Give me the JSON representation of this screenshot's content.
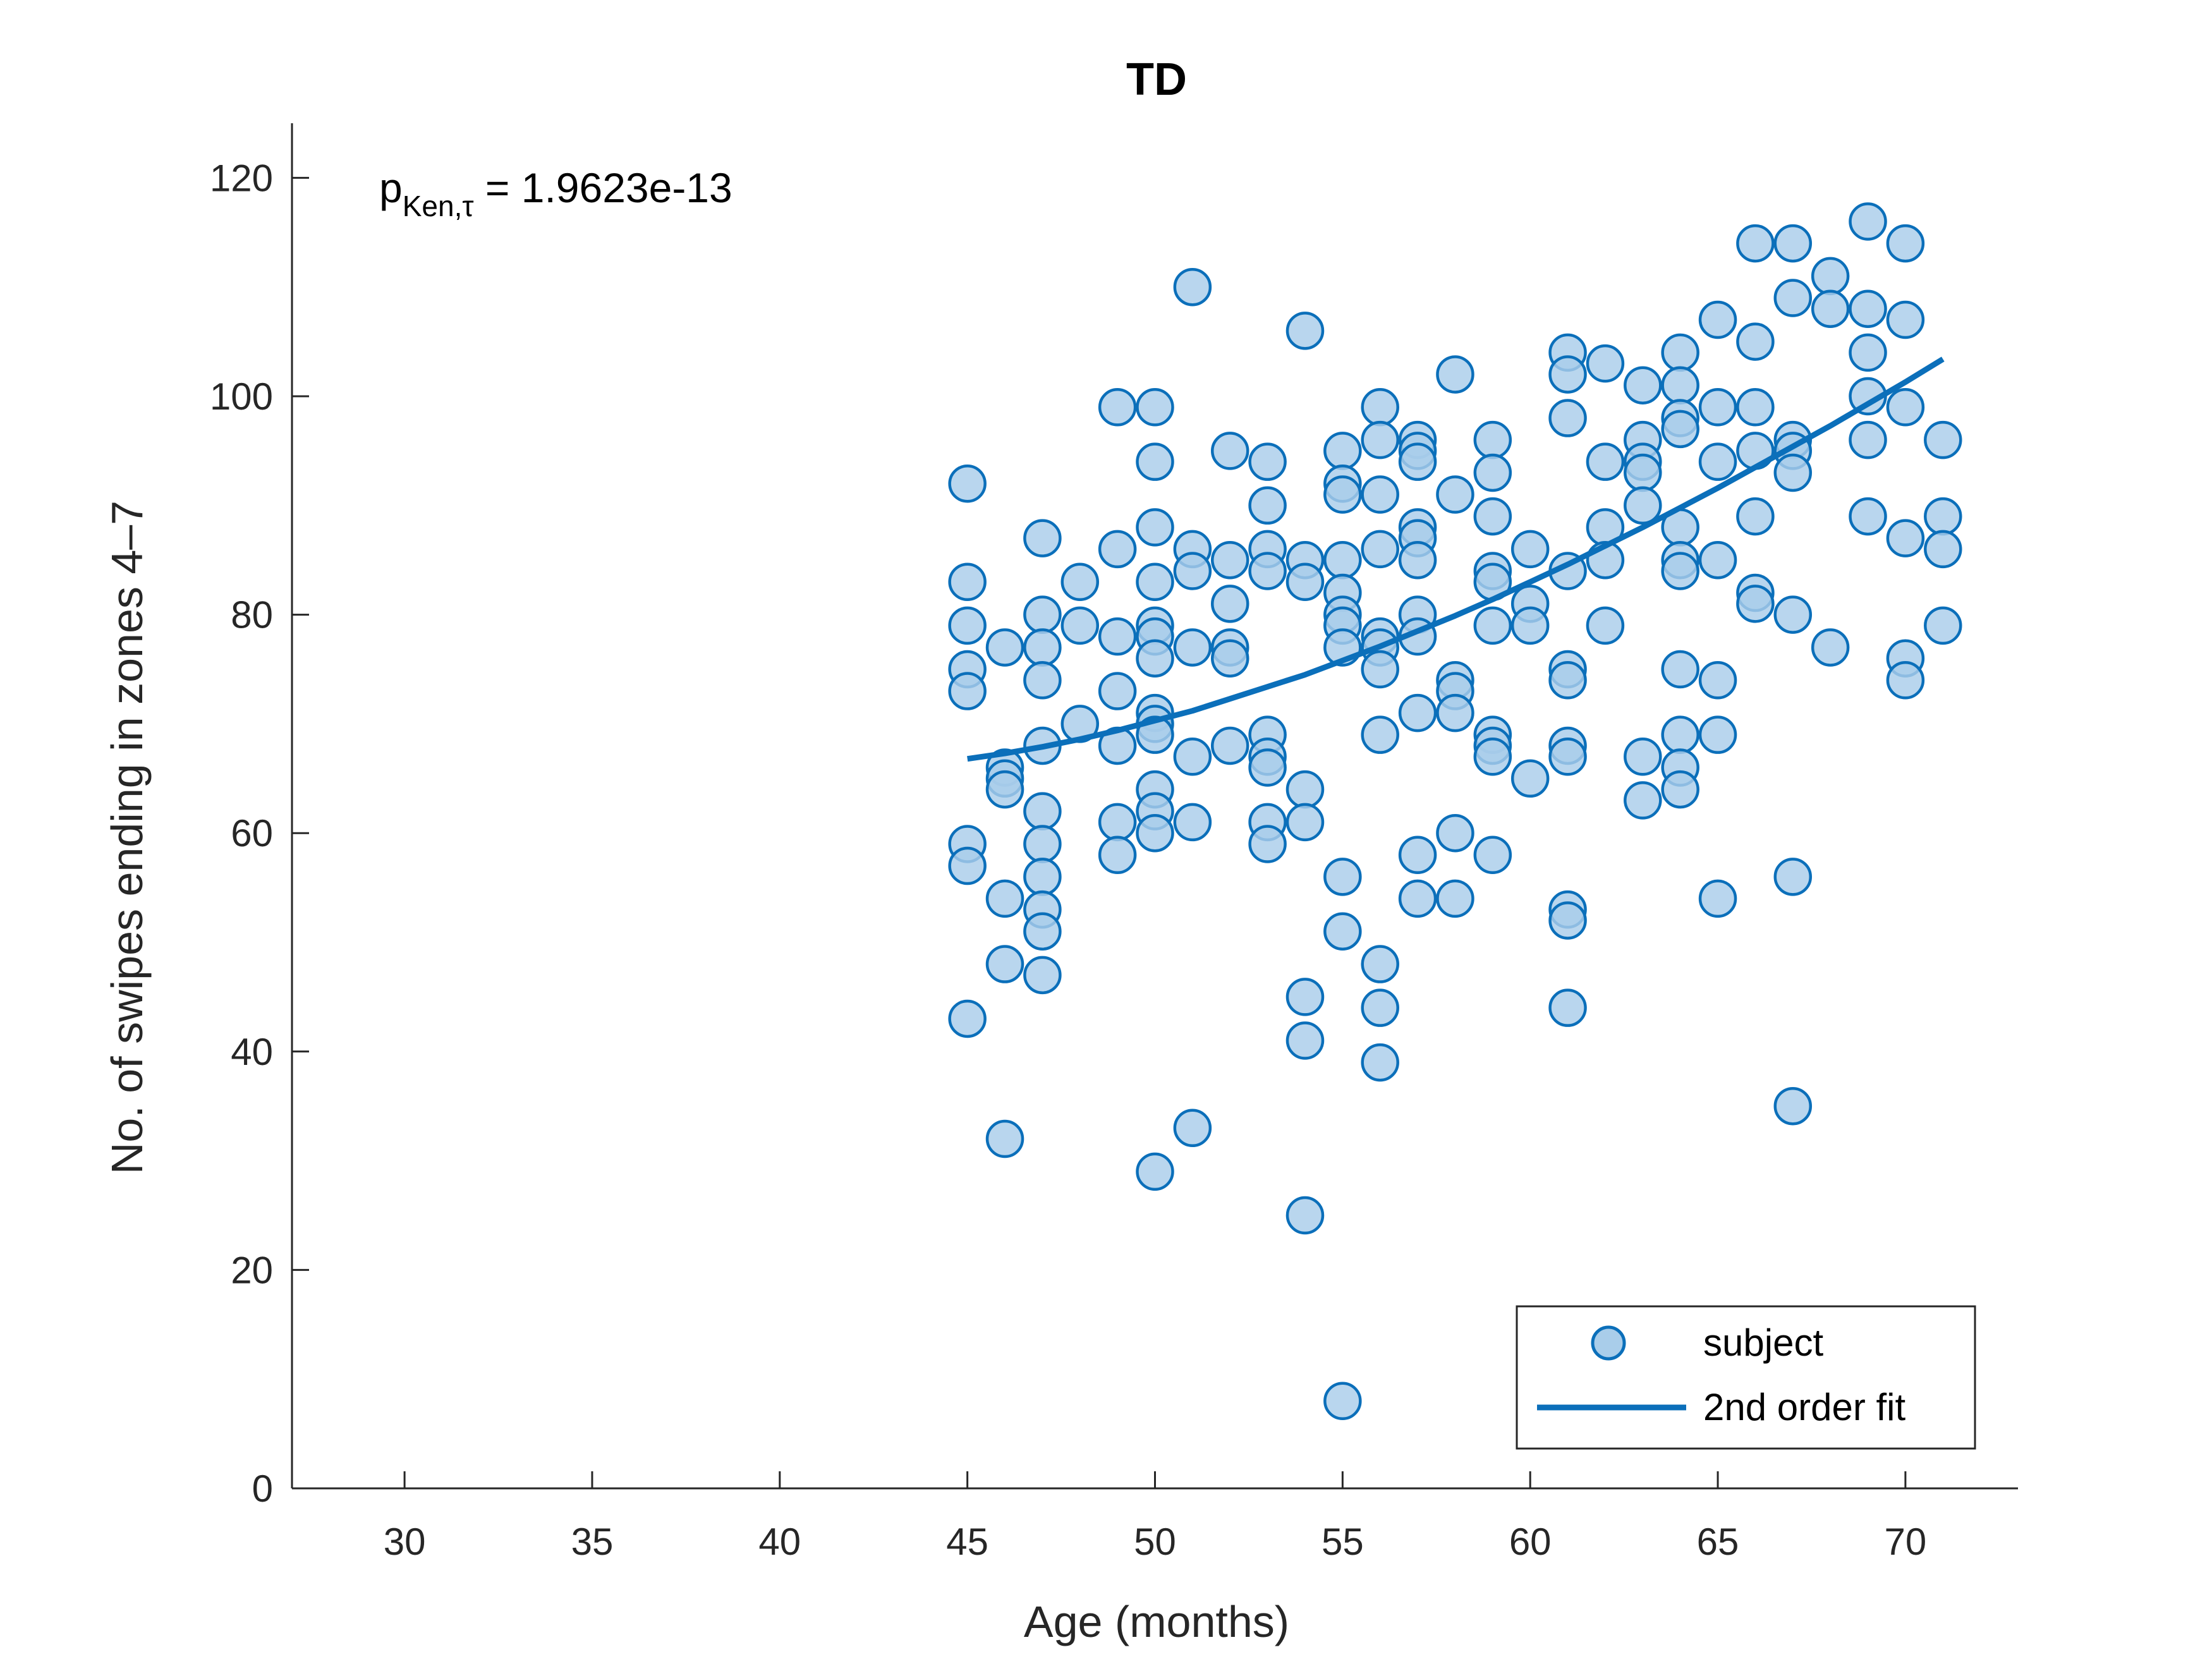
{
  "chart_data": {
    "type": "scatter",
    "title": "TD",
    "xlabel": "Age (months)",
    "ylabel": "No. of swipes ending in zones 4–7",
    "xlim": [
      27,
      73
    ],
    "ylim": [
      0,
      125
    ],
    "xticks": [
      30,
      35,
      40,
      45,
      50,
      55,
      60,
      65,
      70
    ],
    "yticks": [
      0,
      20,
      40,
      60,
      80,
      100,
      120
    ],
    "annotation": {
      "prefix": "p",
      "subscript": "Ken,τ",
      "value": " = 1.9623e-13"
    },
    "legend": {
      "position": "bottom-right",
      "entries": [
        "subject",
        "2nd order fit"
      ]
    },
    "colors": {
      "marker_fill": "#a9cdea",
      "marker_edge": "#0b6fba",
      "fit_line": "#0b6fba"
    },
    "series": [
      {
        "name": "subject",
        "points": [
          [
            45,
            92
          ],
          [
            45,
            83
          ],
          [
            45,
            79
          ],
          [
            45,
            75
          ],
          [
            45,
            73
          ],
          [
            45,
            59
          ],
          [
            45,
            57
          ],
          [
            45,
            43
          ],
          [
            46,
            77
          ],
          [
            46,
            66
          ],
          [
            46,
            65
          ],
          [
            46,
            64
          ],
          [
            46,
            54
          ],
          [
            46,
            48
          ],
          [
            46,
            32
          ],
          [
            47,
            87
          ],
          [
            47,
            80
          ],
          [
            47,
            77
          ],
          [
            47,
            74
          ],
          [
            47,
            68
          ],
          [
            47,
            62
          ],
          [
            47,
            59
          ],
          [
            47,
            56
          ],
          [
            47,
            53
          ],
          [
            47,
            51
          ],
          [
            47,
            47
          ],
          [
            48,
            83
          ],
          [
            48,
            79
          ],
          [
            48,
            70
          ],
          [
            49,
            99
          ],
          [
            49,
            86
          ],
          [
            49,
            78
          ],
          [
            49,
            73
          ],
          [
            49,
            68
          ],
          [
            49,
            61
          ],
          [
            49,
            58
          ],
          [
            50,
            99
          ],
          [
            50,
            94
          ],
          [
            50,
            88
          ],
          [
            50,
            83
          ],
          [
            50,
            79
          ],
          [
            50,
            78
          ],
          [
            50,
            76
          ],
          [
            50,
            71
          ],
          [
            50,
            70
          ],
          [
            50,
            69
          ],
          [
            50,
            64
          ],
          [
            50,
            62
          ],
          [
            50,
            60
          ],
          [
            50,
            29
          ],
          [
            51,
            110
          ],
          [
            51,
            86
          ],
          [
            51,
            84
          ],
          [
            51,
            77
          ],
          [
            51,
            67
          ],
          [
            51,
            61
          ],
          [
            51,
            33
          ],
          [
            52,
            95
          ],
          [
            52,
            85
          ],
          [
            52,
            81
          ],
          [
            52,
            77
          ],
          [
            52,
            76
          ],
          [
            52,
            68
          ],
          [
            53,
            94
          ],
          [
            53,
            90
          ],
          [
            53,
            86
          ],
          [
            53,
            84
          ],
          [
            53,
            69
          ],
          [
            53,
            67
          ],
          [
            53,
            66
          ],
          [
            53,
            61
          ],
          [
            53,
            59
          ],
          [
            54,
            106
          ],
          [
            54,
            85
          ],
          [
            54,
            83
          ],
          [
            54,
            64
          ],
          [
            54,
            61
          ],
          [
            54,
            45
          ],
          [
            54,
            41
          ],
          [
            54,
            25
          ],
          [
            55,
            95
          ],
          [
            55,
            92
          ],
          [
            55,
            91
          ],
          [
            55,
            85
          ],
          [
            55,
            82
          ],
          [
            55,
            80
          ],
          [
            55,
            79
          ],
          [
            55,
            77
          ],
          [
            55,
            56
          ],
          [
            55,
            51
          ],
          [
            55,
            8
          ],
          [
            56,
            99
          ],
          [
            56,
            96
          ],
          [
            56,
            91
          ],
          [
            56,
            86
          ],
          [
            56,
            78
          ],
          [
            56,
            77
          ],
          [
            56,
            75
          ],
          [
            56,
            69
          ],
          [
            56,
            48
          ],
          [
            56,
            44
          ],
          [
            56,
            39
          ],
          [
            57,
            96
          ],
          [
            57,
            95
          ],
          [
            57,
            94
          ],
          [
            57,
            88
          ],
          [
            57,
            87
          ],
          [
            57,
            85
          ],
          [
            57,
            80
          ],
          [
            57,
            78
          ],
          [
            57,
            71
          ],
          [
            57,
            58
          ],
          [
            57,
            54
          ],
          [
            58,
            102
          ],
          [
            58,
            91
          ],
          [
            58,
            74
          ],
          [
            58,
            73
          ],
          [
            58,
            71
          ],
          [
            58,
            60
          ],
          [
            58,
            54
          ],
          [
            59,
            96
          ],
          [
            59,
            93
          ],
          [
            59,
            89
          ],
          [
            59,
            84
          ],
          [
            59,
            83
          ],
          [
            59,
            79
          ],
          [
            59,
            69
          ],
          [
            59,
            68
          ],
          [
            59,
            67
          ],
          [
            59,
            58
          ],
          [
            60,
            86
          ],
          [
            60,
            81
          ],
          [
            60,
            79
          ],
          [
            60,
            65
          ],
          [
            61,
            104
          ],
          [
            61,
            102
          ],
          [
            61,
            98
          ],
          [
            61,
            84
          ],
          [
            61,
            75
          ],
          [
            61,
            74
          ],
          [
            61,
            68
          ],
          [
            61,
            67
          ],
          [
            61,
            53
          ],
          [
            61,
            52
          ],
          [
            61,
            44
          ],
          [
            62,
            103
          ],
          [
            62,
            94
          ],
          [
            62,
            88
          ],
          [
            62,
            85
          ],
          [
            62,
            79
          ],
          [
            63,
            101
          ],
          [
            63,
            96
          ],
          [
            63,
            94
          ],
          [
            63,
            93
          ],
          [
            63,
            90
          ],
          [
            63,
            67
          ],
          [
            63,
            63
          ],
          [
            64,
            104
          ],
          [
            64,
            101
          ],
          [
            64,
            98
          ],
          [
            64,
            97
          ],
          [
            64,
            88
          ],
          [
            64,
            85
          ],
          [
            64,
            84
          ],
          [
            64,
            75
          ],
          [
            64,
            69
          ],
          [
            64,
            66
          ],
          [
            64,
            64
          ],
          [
            65,
            107
          ],
          [
            65,
            99
          ],
          [
            65,
            94
          ],
          [
            65,
            85
          ],
          [
            65,
            74
          ],
          [
            65,
            69
          ],
          [
            65,
            54
          ],
          [
            66,
            114
          ],
          [
            66,
            105
          ],
          [
            66,
            99
          ],
          [
            66,
            95
          ],
          [
            66,
            89
          ],
          [
            66,
            82
          ],
          [
            66,
            81
          ],
          [
            67,
            114
          ],
          [
            67,
            109
          ],
          [
            67,
            96
          ],
          [
            67,
            95
          ],
          [
            67,
            93
          ],
          [
            67,
            80
          ],
          [
            67,
            56
          ],
          [
            67,
            35
          ],
          [
            68,
            111
          ],
          [
            68,
            108
          ],
          [
            68,
            77
          ],
          [
            69,
            116
          ],
          [
            69,
            108
          ],
          [
            69,
            104
          ],
          [
            69,
            100
          ],
          [
            69,
            96
          ],
          [
            69,
            89
          ],
          [
            70,
            114
          ],
          [
            70,
            107
          ],
          [
            70,
            99
          ],
          [
            70,
            87
          ],
          [
            70,
            76
          ],
          [
            70,
            74
          ],
          [
            71,
            96
          ],
          [
            71,
            89
          ],
          [
            71,
            86
          ],
          [
            71,
            79
          ]
        ]
      },
      {
        "name": "2nd order fit",
        "x": [
          45,
          46,
          47,
          48,
          49,
          50,
          51,
          52,
          53,
          54,
          55,
          56,
          57,
          58,
          59,
          60,
          61,
          62,
          63,
          64,
          65,
          66,
          67,
          68,
          69,
          70,
          71
        ],
        "y": [
          66.8,
          67.3,
          67.9,
          68.6,
          69.4,
          70.3,
          71.2,
          72.3,
          73.4,
          74.5,
          75.8,
          77.1,
          78.5,
          79.9,
          81.4,
          83.0,
          84.6,
          86.3,
          88.0,
          89.8,
          91.6,
          93.5,
          95.4,
          97.3,
          99.3,
          101.3,
          103.4
        ]
      }
    ]
  }
}
